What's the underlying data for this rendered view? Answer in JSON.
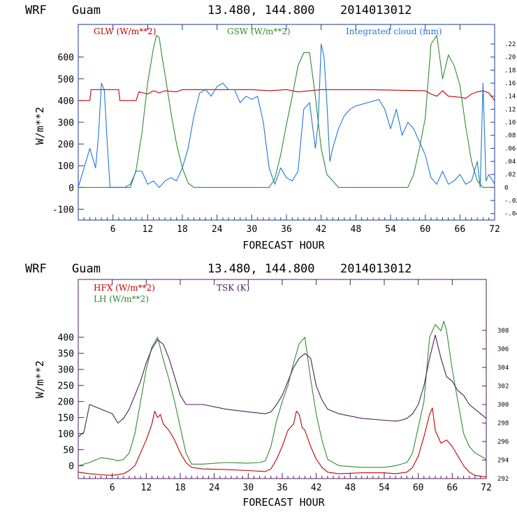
{
  "chart_data": [
    {
      "type": "line",
      "header": {
        "model": "WRF",
        "location": "Guam",
        "coords": "13.480, 144.800",
        "init": "2014013012"
      },
      "xlabel": "FORECAST HOUR",
      "ylabel": "W/m**2",
      "xlim": [
        0,
        72
      ],
      "ylim": [
        -150,
        750
      ],
      "y2lim": [
        -0.05,
        0.25
      ],
      "x_ticks": [
        6,
        12,
        18,
        24,
        30,
        36,
        42,
        48,
        54,
        60,
        66,
        72
      ],
      "y_ticks": [
        -100,
        0,
        100,
        200,
        300,
        400,
        500,
        600
      ],
      "y2_ticks": [
        -0.04,
        -0.02,
        0,
        0.02,
        0.04,
        0.06,
        0.08,
        0.1,
        0.12,
        0.14,
        0.16,
        0.18,
        0.2,
        0.22
      ],
      "y2_tick_labels": [
        "-.04",
        "-.02",
        "0",
        ".02",
        ".04",
        ".06",
        ".08",
        ".10",
        ".12",
        ".14",
        ".16",
        ".18",
        ".20",
        ".22"
      ],
      "series": [
        {
          "name": "GLW (W/m**2)",
          "color": "#c00000",
          "axis": "left",
          "x": [
            0,
            2,
            2.2,
            7,
            7.2,
            10,
            10.5,
            12,
            13,
            14,
            15,
            17,
            18,
            30,
            33,
            36,
            38,
            40,
            42,
            50,
            60,
            61,
            62,
            63,
            64,
            66,
            67,
            68,
            69,
            70,
            71,
            72
          ],
          "values": [
            400,
            400,
            450,
            450,
            400,
            400,
            440,
            430,
            445,
            435,
            445,
            440,
            450,
            450,
            445,
            450,
            440,
            445,
            450,
            450,
            445,
            430,
            420,
            445,
            420,
            415,
            410,
            430,
            440,
            445,
            435,
            400
          ]
        },
        {
          "name": "GSW (W/m**2)",
          "color": "#2e8b2e",
          "axis": "left",
          "x": [
            0,
            9,
            10,
            11,
            12,
            13,
            13.5,
            14,
            14.5,
            15,
            16,
            17,
            18,
            19,
            20,
            21,
            33,
            34,
            35,
            36,
            37,
            38,
            39,
            40,
            41,
            42,
            43,
            45,
            57,
            58,
            59,
            60,
            61,
            62,
            63,
            64,
            65,
            66,
            67,
            68,
            69,
            70,
            72
          ],
          "values": [
            0,
            0,
            80,
            250,
            480,
            640,
            700,
            690,
            600,
            520,
            350,
            200,
            90,
            20,
            0,
            0,
            0,
            40,
            150,
            290,
            420,
            560,
            620,
            620,
            420,
            180,
            60,
            0,
            0,
            60,
            180,
            320,
            660,
            700,
            500,
            610,
            560,
            470,
            280,
            120,
            30,
            0,
            0
          ]
        },
        {
          "name": "Integrated cloud (mm)",
          "color": "#1e78d7",
          "axis": "right",
          "x": [
            0,
            1,
            2,
            3,
            3.5,
            4,
            4.5,
            5,
            5.5,
            6,
            7,
            8,
            9,
            10,
            11,
            12,
            13,
            14,
            15,
            16,
            17,
            18,
            19,
            20,
            21,
            22,
            23,
            24,
            25,
            26,
            27,
            28,
            29,
            30,
            31,
            32,
            33,
            34,
            35,
            36,
            37,
            38,
            39,
            40,
            41,
            41.5,
            42,
            42.5,
            43,
            43.5,
            44,
            45,
            46,
            47,
            48,
            50,
            52,
            53,
            54,
            55,
            56,
            57,
            58,
            59,
            60,
            61,
            62,
            63,
            64,
            65,
            66,
            67,
            68,
            69,
            69.5,
            70,
            70.5,
            71,
            72
          ],
          "values": [
            0,
            0.03,
            0.06,
            0.03,
            0.08,
            0.16,
            0.15,
            0.07,
            0,
            0,
            0,
            0,
            0.005,
            0.025,
            0.025,
            0.005,
            0.01,
            0,
            0.01,
            0.015,
            0.01,
            0.03,
            0.06,
            0.11,
            0.145,
            0.15,
            0.14,
            0.155,
            0.16,
            0.15,
            0.15,
            0.13,
            0.14,
            0.135,
            0.14,
            0.1,
            0.03,
            0.005,
            0.03,
            0.015,
            0.01,
            0.025,
            0.12,
            0.13,
            0.06,
            0.1,
            0.22,
            0.2,
            0.13,
            0.04,
            0.06,
            0.09,
            0.11,
            0.12,
            0.125,
            0.13,
            0.135,
            0.12,
            0.09,
            0.12,
            0.08,
            0.1,
            0.09,
            0.07,
            0.05,
            0.015,
            0.005,
            0.025,
            0.005,
            0.01,
            0.02,
            0.005,
            0.01,
            0.04,
            0.0,
            0.16,
            0.01,
            0.02,
            0.005
          ]
        }
      ]
    },
    {
      "type": "line",
      "header": {
        "model": "WRF",
        "location": "Guam",
        "coords": "13.480, 144.800",
        "init": "2014013012"
      },
      "xlabel": "FORECAST HOUR",
      "ylabel": "W/m**2",
      "xlim": [
        0,
        72
      ],
      "ylim": [
        -40,
        580
      ],
      "y2lim": [
        292,
        313.5
      ],
      "x_ticks": [
        6,
        12,
        18,
        24,
        30,
        36,
        42,
        48,
        54,
        60,
        66,
        72
      ],
      "y_ticks": [
        0,
        50,
        100,
        150,
        200,
        250,
        300,
        350,
        400
      ],
      "y2_ticks": [
        292,
        294,
        296,
        298,
        300,
        302,
        304,
        306,
        308
      ],
      "series": [
        {
          "name": "HFX (W/m**2)",
          "color": "#c00000",
          "axis": "left",
          "x": [
            0,
            2,
            4,
            6,
            8,
            9,
            10,
            11,
            12,
            13,
            13.5,
            14,
            14.5,
            15,
            16,
            17,
            18,
            19,
            20,
            22,
            26,
            30,
            33,
            34,
            35,
            36,
            37,
            38,
            38.5,
            39,
            39.5,
            40,
            41,
            42,
            43,
            44,
            46,
            50,
            54,
            56,
            58,
            59,
            60,
            61,
            62,
            62.5,
            63,
            64,
            65,
            66,
            67,
            68,
            69,
            70,
            72
          ],
          "values": [
            -20,
            -25,
            -28,
            -30,
            -25,
            -15,
            0,
            40,
            80,
            130,
            170,
            150,
            160,
            130,
            110,
            80,
            40,
            10,
            -5,
            -10,
            -12,
            -15,
            -18,
            -10,
            20,
            60,
            110,
            130,
            170,
            160,
            120,
            110,
            60,
            20,
            -5,
            -20,
            -25,
            -22,
            -22,
            -25,
            -20,
            -5,
            30,
            90,
            160,
            180,
            110,
            70,
            80,
            60,
            30,
            0,
            -20,
            -30,
            -35
          ]
        },
        {
          "name": "LH (W/m**2)",
          "color": "#2e8b2e",
          "axis": "left",
          "x": [
            0,
            2,
            4,
            6,
            7,
            8,
            9,
            10,
            11,
            12,
            13,
            14,
            15,
            16,
            17,
            18,
            19,
            20,
            22,
            26,
            30,
            32,
            33,
            34,
            35,
            36,
            37,
            38,
            39,
            40,
            41,
            42,
            43,
            44,
            46,
            50,
            54,
            56,
            58,
            59,
            60,
            61,
            62,
            63,
            64,
            64.5,
            65,
            66,
            67,
            68,
            69,
            70,
            72
          ],
          "values": [
            0,
            10,
            25,
            20,
            15,
            20,
            40,
            100,
            200,
            300,
            370,
            400,
            330,
            270,
            200,
            120,
            40,
            5,
            5,
            10,
            8,
            10,
            15,
            60,
            140,
            200,
            250,
            320,
            380,
            400,
            270,
            160,
            80,
            20,
            0,
            -5,
            -5,
            0,
            10,
            40,
            120,
            200,
            400,
            440,
            420,
            450,
            420,
            300,
            200,
            100,
            60,
            40,
            20
          ]
        },
        {
          "name": "TSK (K)",
          "color": "#4b1e5a",
          "axis": "right",
          "x": [
            0,
            1,
            2,
            6,
            7,
            8,
            9,
            10,
            11,
            12,
            13,
            14,
            15,
            16,
            17,
            18,
            19,
            20,
            22,
            26,
            30,
            33,
            34,
            35,
            36,
            37,
            38,
            39,
            40,
            41,
            42,
            43,
            44,
            46,
            50,
            54,
            56,
            57,
            58,
            59,
            60,
            61,
            62,
            63,
            64,
            65,
            66,
            67,
            68,
            69,
            70,
            72
          ],
          "values": [
            296.5,
            297,
            300,
            299,
            298,
            298.5,
            299.5,
            301,
            302.5,
            304.5,
            306,
            307,
            306.5,
            305,
            303,
            301,
            300,
            300,
            300,
            299.5,
            299.2,
            299,
            299.2,
            300,
            301,
            302.5,
            304,
            305,
            305.5,
            305,
            302,
            300.5,
            299.5,
            299,
            298.5,
            298.3,
            298.2,
            298.3,
            298.5,
            299,
            300,
            302,
            305,
            307.5,
            305,
            303,
            302.5,
            301.5,
            301,
            300,
            299.5,
            298.5
          ]
        }
      ]
    }
  ]
}
